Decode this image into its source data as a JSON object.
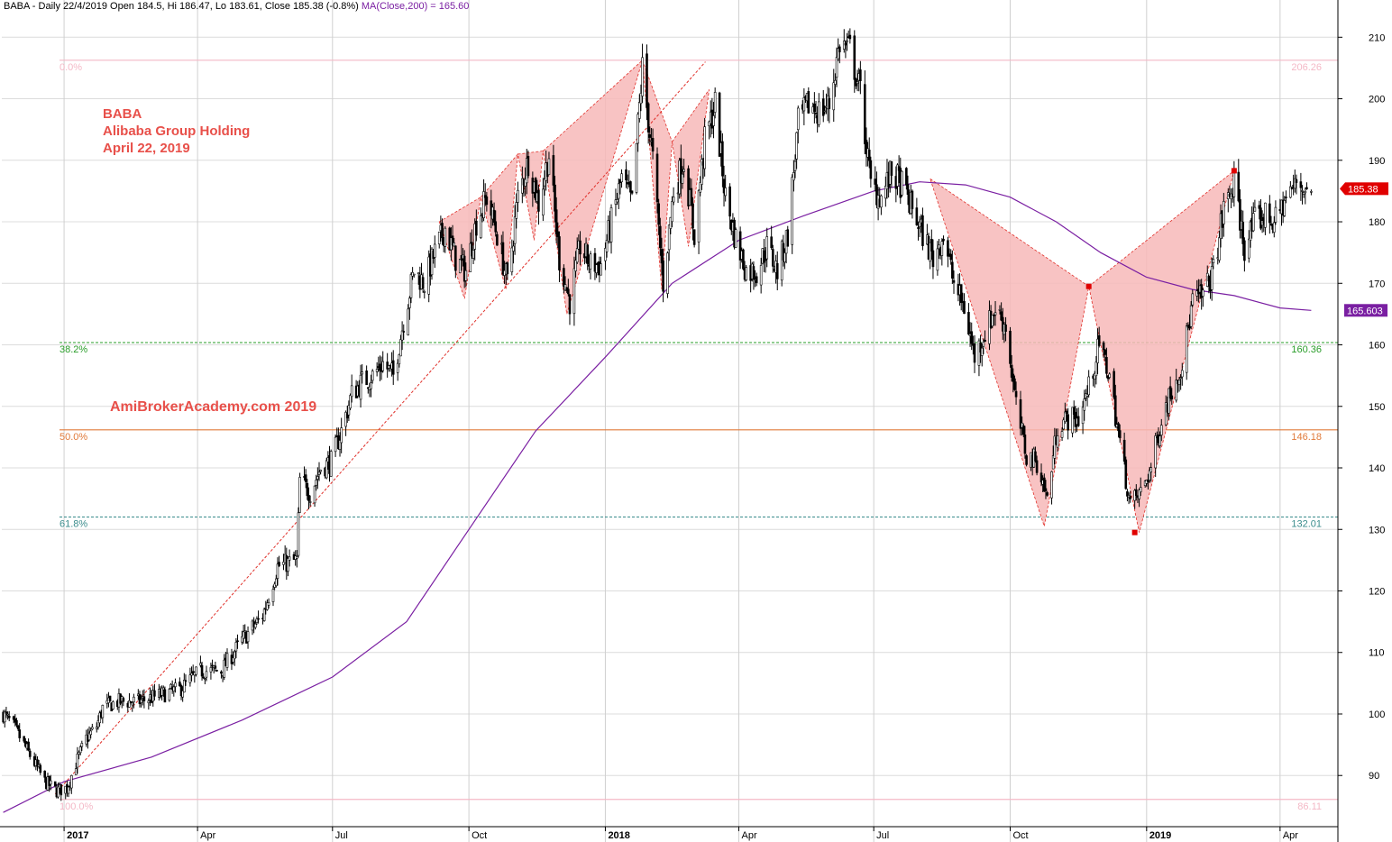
{
  "header": {
    "main": "BABA - Daily 22/4/2019 Open 184.5, Hi 186.47, Lo 183.61, Close 185.38 (-0.8%)",
    "ma": "MA(Close,200) = 165.60"
  },
  "annotations": {
    "ticker": "BABA",
    "company": "Alibaba Group Holding",
    "date": "April 22, 2019",
    "watermark": "AmiBrokerAcademy.com  2019"
  },
  "colors": {
    "candle": "#000000",
    "ma": "#7a1fa2",
    "pattern_fill": "#f7b8b8",
    "pattern_line": "#e0302a",
    "pivot": "#e00000",
    "fib_0": "#f4b8c6",
    "fib_38": "#2a9d2a",
    "fib_50": "#e07a3a",
    "fib_61": "#3a8c8c",
    "fib_100": "#f4b8c6",
    "price_tag": "#e00000",
    "ma_tag": "#7a1fa2"
  },
  "chart_data": {
    "type": "candlestick",
    "symbol": "BABA",
    "ylim": [
      83,
      214
    ],
    "y_ticks": [
      90,
      100,
      110,
      120,
      130,
      140,
      150,
      160,
      170,
      180,
      190,
      200,
      210
    ],
    "x_range": [
      "2016-11-20",
      "2019-05-10"
    ],
    "x_ticks": [
      {
        "label": "2017",
        "date": "2017-01-01",
        "bold": true
      },
      {
        "label": "Apr",
        "date": "2017-04-01",
        "bold": false
      },
      {
        "label": "Jul",
        "date": "2017-07-01",
        "bold": false
      },
      {
        "label": "Oct",
        "date": "2017-10-01",
        "bold": false
      },
      {
        "label": "2018",
        "date": "2018-01-01",
        "bold": true
      },
      {
        "label": "Apr",
        "date": "2018-04-01",
        "bold": false
      },
      {
        "label": "Jul",
        "date": "2018-07-01",
        "bold": false
      },
      {
        "label": "Oct",
        "date": "2018-10-01",
        "bold": false
      },
      {
        "label": "2019",
        "date": "2019-01-01",
        "bold": true
      },
      {
        "label": "Apr",
        "date": "2019-04-01",
        "bold": false
      }
    ],
    "price_path": [
      [
        "2016-11-21",
        100
      ],
      [
        "2016-11-28",
        98
      ],
      [
        "2016-12-05",
        95
      ],
      [
        "2016-12-12",
        92
      ],
      [
        "2016-12-19",
        89
      ],
      [
        "2016-12-27",
        87.5
      ],
      [
        "2017-01-03",
        88
      ],
      [
        "2017-01-09",
        92
      ],
      [
        "2017-01-16",
        96
      ],
      [
        "2017-01-23",
        98
      ],
      [
        "2017-01-27",
        101
      ],
      [
        "2017-02-06",
        102
      ],
      [
        "2017-02-20",
        102
      ],
      [
        "2017-03-06",
        103
      ],
      [
        "2017-03-20",
        104
      ],
      [
        "2017-04-03",
        107
      ],
      [
        "2017-04-17",
        107
      ],
      [
        "2017-05-01",
        112
      ],
      [
        "2017-05-15",
        116
      ],
      [
        "2017-05-25",
        124
      ],
      [
        "2017-06-07",
        125
      ],
      [
        "2017-06-09",
        138
      ],
      [
        "2017-06-16",
        136
      ],
      [
        "2017-06-23",
        140
      ],
      [
        "2017-06-30",
        141
      ],
      [
        "2017-07-07",
        146
      ],
      [
        "2017-07-14",
        152
      ],
      [
        "2017-07-21",
        154
      ],
      [
        "2017-07-28",
        155
      ],
      [
        "2017-08-04",
        157
      ],
      [
        "2017-08-11",
        155
      ],
      [
        "2017-08-18",
        164
      ],
      [
        "2017-08-25",
        172
      ],
      [
        "2017-09-01",
        170
      ],
      [
        "2017-09-08",
        175
      ],
      [
        "2017-09-15",
        179
      ],
      [
        "2017-09-22",
        174
      ],
      [
        "2017-09-29",
        172
      ],
      [
        "2017-10-06",
        180
      ],
      [
        "2017-10-13",
        184
      ],
      [
        "2017-10-20",
        178
      ],
      [
        "2017-10-27",
        170
      ],
      [
        "2017-11-03",
        184
      ],
      [
        "2017-11-10",
        190
      ],
      [
        "2017-11-17",
        183
      ],
      [
        "2017-11-24",
        191
      ],
      [
        "2017-12-01",
        174
      ],
      [
        "2017-12-08",
        167
      ],
      [
        "2017-12-15",
        176
      ],
      [
        "2017-12-22",
        173
      ],
      [
        "2017-12-29",
        173
      ],
      [
        "2018-01-05",
        180
      ],
      [
        "2018-01-12",
        187
      ],
      [
        "2018-01-19",
        183
      ],
      [
        "2018-01-26",
        205
      ],
      [
        "2018-02-02",
        190
      ],
      [
        "2018-02-09",
        170
      ],
      [
        "2018-02-16",
        185
      ],
      [
        "2018-02-23",
        190
      ],
      [
        "2018-03-02",
        178
      ],
      [
        "2018-03-09",
        193
      ],
      [
        "2018-03-16",
        199
      ],
      [
        "2018-03-23",
        184
      ],
      [
        "2018-03-29",
        178
      ],
      [
        "2018-04-06",
        172
      ],
      [
        "2018-04-13",
        172
      ],
      [
        "2018-04-20",
        176
      ],
      [
        "2018-04-27",
        172
      ],
      [
        "2018-05-04",
        178
      ],
      [
        "2018-05-11",
        196
      ],
      [
        "2018-05-18",
        199
      ],
      [
        "2018-05-25",
        198
      ],
      [
        "2018-06-01",
        199
      ],
      [
        "2018-06-08",
        209
      ],
      [
        "2018-06-15",
        208
      ],
      [
        "2018-06-22",
        201
      ],
      [
        "2018-06-29",
        186
      ],
      [
        "2018-07-06",
        184
      ],
      [
        "2018-07-13",
        188
      ],
      [
        "2018-07-20",
        186
      ],
      [
        "2018-07-27",
        182
      ],
      [
        "2018-08-03",
        178
      ],
      [
        "2018-08-10",
        174
      ],
      [
        "2018-08-17",
        178
      ],
      [
        "2018-08-24",
        170
      ],
      [
        "2018-08-31",
        166
      ],
      [
        "2018-09-07",
        158
      ],
      [
        "2018-09-14",
        162
      ],
      [
        "2018-09-21",
        166
      ],
      [
        "2018-09-28",
        163
      ],
      [
        "2018-10-05",
        150
      ],
      [
        "2018-10-12",
        142
      ],
      [
        "2018-10-19",
        141
      ],
      [
        "2018-10-26",
        135
      ],
      [
        "2018-11-02",
        147
      ],
      [
        "2018-11-09",
        148
      ],
      [
        "2018-11-16",
        148
      ],
      [
        "2018-11-23",
        153
      ],
      [
        "2018-11-30",
        160
      ],
      [
        "2018-12-07",
        155
      ],
      [
        "2018-12-14",
        144
      ],
      [
        "2018-12-21",
        134
      ],
      [
        "2018-12-28",
        136
      ],
      [
        "2019-01-04",
        140
      ],
      [
        "2019-01-11",
        148
      ],
      [
        "2019-01-18",
        153
      ],
      [
        "2019-01-25",
        157
      ],
      [
        "2019-02-01",
        167
      ],
      [
        "2019-02-08",
        168
      ],
      [
        "2019-02-15",
        172
      ],
      [
        "2019-02-22",
        182
      ],
      [
        "2019-03-01",
        186
      ],
      [
        "2019-03-08",
        176
      ],
      [
        "2019-03-15",
        180
      ],
      [
        "2019-03-22",
        181
      ],
      [
        "2019-03-29",
        180
      ],
      [
        "2019-04-05",
        184
      ],
      [
        "2019-04-12",
        186
      ],
      [
        "2019-04-22",
        185.38
      ]
    ],
    "ma200": [
      [
        "2016-11-21",
        84
      ],
      [
        "2017-01-01",
        89
      ],
      [
        "2017-03-01",
        93
      ],
      [
        "2017-05-01",
        99
      ],
      [
        "2017-07-01",
        106
      ],
      [
        "2017-08-20",
        115
      ],
      [
        "2017-10-01",
        130
      ],
      [
        "2017-11-15",
        146
      ],
      [
        "2018-01-01",
        158
      ],
      [
        "2018-02-15",
        170
      ],
      [
        "2018-04-01",
        177
      ],
      [
        "2018-05-15",
        181
      ],
      [
        "2018-07-01",
        185
      ],
      [
        "2018-08-01",
        186.5
      ],
      [
        "2018-09-01",
        186
      ],
      [
        "2018-10-01",
        184
      ],
      [
        "2018-11-01",
        180
      ],
      [
        "2018-12-01",
        175
      ],
      [
        "2019-01-01",
        171
      ],
      [
        "2019-02-01",
        169
      ],
      [
        "2019-03-01",
        168
      ],
      [
        "2019-04-01",
        166
      ],
      [
        "2019-04-22",
        165.6
      ]
    ],
    "fib_levels": [
      {
        "left": "0.0%",
        "right": "206.26",
        "value": 206.26,
        "color": "#f4b8c6",
        "dash": false
      },
      {
        "left": "38.2%",
        "right": "160.36",
        "value": 160.36,
        "color": "#2a9d2a",
        "dash": true
      },
      {
        "left": "50.0%",
        "right": "146.18",
        "value": 146.18,
        "color": "#e07a3a",
        "dash": false
      },
      {
        "left": "61.8%",
        "right": "132.01",
        "value": 132.01,
        "color": "#3a8c8c",
        "dash": true
      },
      {
        "left": "100.0%",
        "right": "86.11",
        "value": 86.11,
        "color": "#f4b8c6",
        "dash": false
      }
    ],
    "trendline": [
      [
        "2016-12-26",
        87
      ],
      [
        "2018-02-01",
        205.7
      ]
    ],
    "triangles": [
      [
        [
          "2017-09-11",
          180
        ],
        [
          "2017-10-09",
          184
        ],
        [
          "2017-09-28",
          167.5
        ]
      ],
      [
        [
          "2017-10-09",
          184
        ],
        [
          "2017-11-03",
          191
        ],
        [
          "2017-10-26",
          169
        ]
      ],
      [
        [
          "2017-11-03",
          191
        ],
        [
          "2017-11-20",
          191.5
        ],
        [
          "2017-11-14",
          177
        ]
      ],
      [
        [
          "2017-11-20",
          191.5
        ],
        [
          "2018-01-26",
          206.26
        ],
        [
          "2017-12-06",
          165
        ]
      ],
      [
        [
          "2018-01-26",
          206.26
        ],
        [
          "2018-02-15",
          193
        ],
        [
          "2018-02-08",
          169
        ]
      ],
      [
        [
          "2018-02-15",
          193
        ],
        [
          "2018-03-12",
          201.5
        ],
        [
          "2018-02-26",
          176
        ]
      ],
      [
        [
          "2018-08-08",
          187
        ],
        [
          "2018-11-23",
          169.5
        ],
        [
          "2018-10-24",
          130.5
        ]
      ],
      [
        [
          "2018-11-23",
          169.5
        ],
        [
          "2019-03-01",
          188.3
        ],
        [
          "2018-12-27",
          129.5
        ]
      ]
    ],
    "pivots": [
      [
        "2018-11-23",
        169.5
      ],
      [
        "2018-12-24",
        129.5
      ],
      [
        "2019-03-01",
        188.3
      ]
    ],
    "last_close": {
      "value": 185.38,
      "label": "185.38"
    },
    "ma_last": {
      "value": 165.603,
      "label": "165.603"
    }
  }
}
